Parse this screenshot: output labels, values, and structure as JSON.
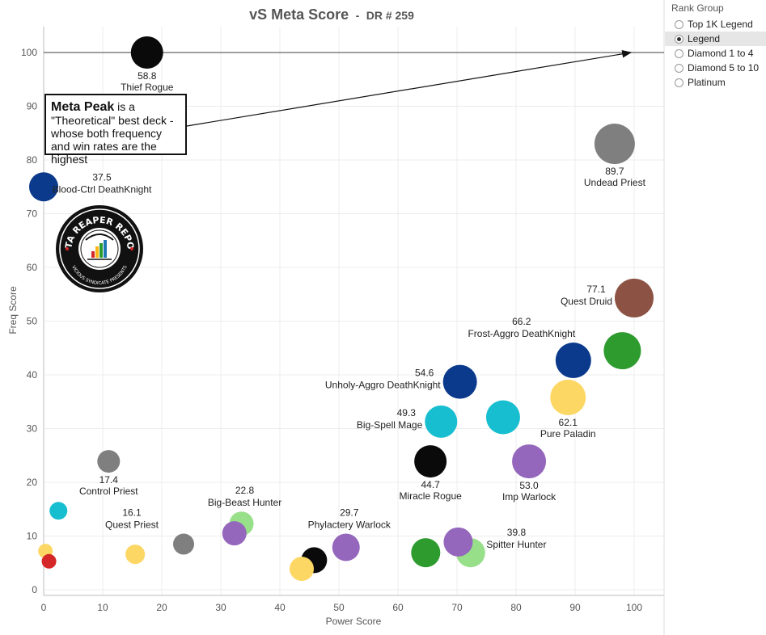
{
  "chart_data": {
    "type": "scatter",
    "title": "vS Meta Score",
    "subtitle": "DR # 259",
    "title_separator": "-",
    "xlabel": "Power Score",
    "ylabel": "Freq Score",
    "xlim": [
      0,
      105
    ],
    "ylim": [
      -1,
      105
    ],
    "xticks": [
      0,
      10,
      20,
      30,
      40,
      50,
      60,
      70,
      80,
      90,
      100
    ],
    "yticks": [
      0,
      10,
      20,
      30,
      40,
      50,
      60,
      70,
      80,
      90,
      100
    ],
    "grid": true,
    "reference_line_y": 100,
    "points": [
      {
        "x": 17.5,
        "y": 100,
        "size": 20,
        "color": "#0a0a0a",
        "score": "58.8",
        "label": "Thief Rogue",
        "label_pos": "below"
      },
      {
        "x": 0,
        "y": 75,
        "size": 18,
        "color": "#0b3a8c",
        "score": "37.5",
        "label": "Blood-Ctrl DeathKnight",
        "label_pos": "right"
      },
      {
        "x": 96.7,
        "y": 83,
        "size": 25,
        "color": "#7f7f7f",
        "score": "89.7",
        "label": "Undead Priest",
        "label_pos": "below"
      },
      {
        "x": 100,
        "y": 54.3,
        "size": 24,
        "color": "#8c5345",
        "score": "77.1",
        "label": "Quest Druid",
        "label_pos": "left"
      },
      {
        "x": 98,
        "y": 44.5,
        "size": 23,
        "color": "#2e9b2e",
        "score": "",
        "label": "",
        "label_pos": "none"
      },
      {
        "x": 89.7,
        "y": 42.7,
        "size": 22,
        "color": "#0b3a8c",
        "score": "66.2",
        "label": "Frost-Aggro DeathKnight",
        "label_pos": "above-left"
      },
      {
        "x": 88.8,
        "y": 35.8,
        "size": 22,
        "color": "#fdd764",
        "score": "62.1",
        "label": "Pure Paladin",
        "label_pos": "below"
      },
      {
        "x": 70.5,
        "y": 38.7,
        "size": 21,
        "color": "#0b3a8c",
        "score": "54.6",
        "label": "Unholy-Aggro DeathKnight",
        "label_pos": "left"
      },
      {
        "x": 67.3,
        "y": 31.3,
        "size": 20,
        "color": "#17becf",
        "score": "49.3",
        "label": "Big-Spell Mage",
        "label_pos": "left"
      },
      {
        "x": 77.8,
        "y": 32.1,
        "size": 21,
        "color": "#17becf",
        "score": "",
        "label": "",
        "label_pos": "none"
      },
      {
        "x": 65.5,
        "y": 23.9,
        "size": 20,
        "color": "#0a0a0a",
        "score": "44.7",
        "label": "Miracle Rogue",
        "label_pos": "below"
      },
      {
        "x": 82.2,
        "y": 23.9,
        "size": 21,
        "color": "#9467bd",
        "score": "53.0",
        "label": "Imp Warlock",
        "label_pos": "below"
      },
      {
        "x": 11,
        "y": 23.9,
        "size": 14,
        "color": "#7f7f7f",
        "score": "17.4",
        "label": "Control Priest",
        "label_pos": "below"
      },
      {
        "x": 2.5,
        "y": 14.7,
        "size": 11,
        "color": "#17becf",
        "score": "",
        "label": "",
        "label_pos": "none"
      },
      {
        "x": 33.5,
        "y": 12.3,
        "size": 15,
        "color": "#98df8a",
        "score": "22.8",
        "label": "Big-Beast Hunter",
        "label_pos": "above-right"
      },
      {
        "x": 32.3,
        "y": 10.5,
        "size": 15,
        "color": "#9467bd",
        "score": "",
        "label": "",
        "label_pos": "none"
      },
      {
        "x": 23.7,
        "y": 8.5,
        "size": 13,
        "color": "#7f7f7f",
        "score": "16.1",
        "label": "Quest Priest",
        "label_pos": "above-left"
      },
      {
        "x": 15.5,
        "y": 6.6,
        "size": 12,
        "color": "#fdd764",
        "score": "",
        "label": "",
        "label_pos": "none"
      },
      {
        "x": 51.2,
        "y": 7.9,
        "size": 17,
        "color": "#9467bd",
        "score": "29.7",
        "label": "Phylactery Warlock",
        "label_pos": "above-right"
      },
      {
        "x": 45.8,
        "y": 5.5,
        "size": 16,
        "color": "#0a0a0a",
        "score": "",
        "label": "",
        "label_pos": "none"
      },
      {
        "x": 43.7,
        "y": 3.9,
        "size": 15,
        "color": "#fdd764",
        "score": "",
        "label": "",
        "label_pos": "none"
      },
      {
        "x": 64.7,
        "y": 6.9,
        "size": 18,
        "color": "#2e9b2e",
        "score": "",
        "label": "",
        "label_pos": "none"
      },
      {
        "x": 72.3,
        "y": 6.9,
        "size": 18,
        "color": "#98df8a",
        "score": "",
        "label": "",
        "label_pos": "none"
      },
      {
        "x": 70.2,
        "y": 8.9,
        "size": 18,
        "color": "#9467bd",
        "score": "39.8",
        "label": "Spitter Hunter",
        "label_pos": "right"
      },
      {
        "x": 0.3,
        "y": 7.2,
        "size": 9,
        "color": "#fdd764",
        "score": "",
        "label": "",
        "label_pos": "none"
      },
      {
        "x": 0.9,
        "y": 5.3,
        "size": 9,
        "color": "#d62728",
        "score": "",
        "label": "",
        "label_pos": "none"
      }
    ]
  },
  "annotation": {
    "bold": "Meta Peak",
    "text": " is a \"Theoretical\" best deck - whose both frequency and win rates are the highest"
  },
  "logo": {
    "text_top": "DATA REAPER REPORT",
    "text_bottom": "VICIOUS SYNDICATE PRESENTS"
  },
  "legend": {
    "title": "Rank Group",
    "options": [
      {
        "label": "Top 1K Legend",
        "selected": false
      },
      {
        "label": "Legend",
        "selected": true
      },
      {
        "label": "Diamond 1 to 4",
        "selected": false
      },
      {
        "label": "Diamond 5 to 10",
        "selected": false
      },
      {
        "label": "Platinum",
        "selected": false
      }
    ]
  }
}
